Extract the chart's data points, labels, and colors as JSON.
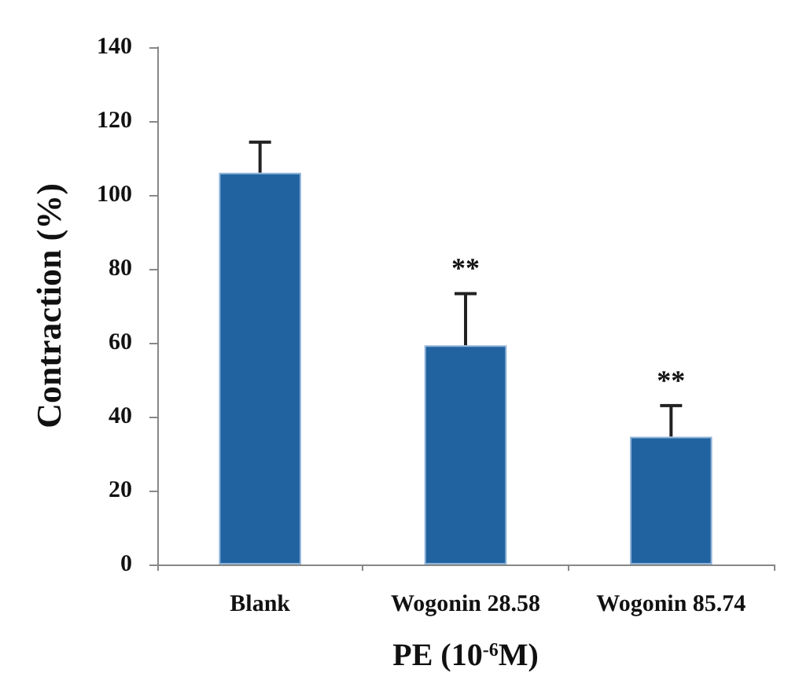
{
  "chart_data": {
    "type": "bar",
    "xlabel": "PE (10$^{-6}$M)",
    "ylabel": "Contraction (%)",
    "categories": [
      "Blank",
      "Wogonin 28.58",
      "Wogonin 85.74"
    ],
    "values": [
      106,
      59.3,
      34.6
    ],
    "color": "#2163a0",
    "errors": [
      [
        106,
        114.3
      ],
      [
        59.3,
        73.3
      ],
      [
        34.6,
        43
      ]
    ],
    "ylim": [
      0,
      140
    ],
    "yticks": [
      0,
      20,
      40,
      60,
      80,
      100,
      120,
      140
    ],
    "grid": false,
    "annotations": [
      "**",
      "**"
    ]
  }
}
